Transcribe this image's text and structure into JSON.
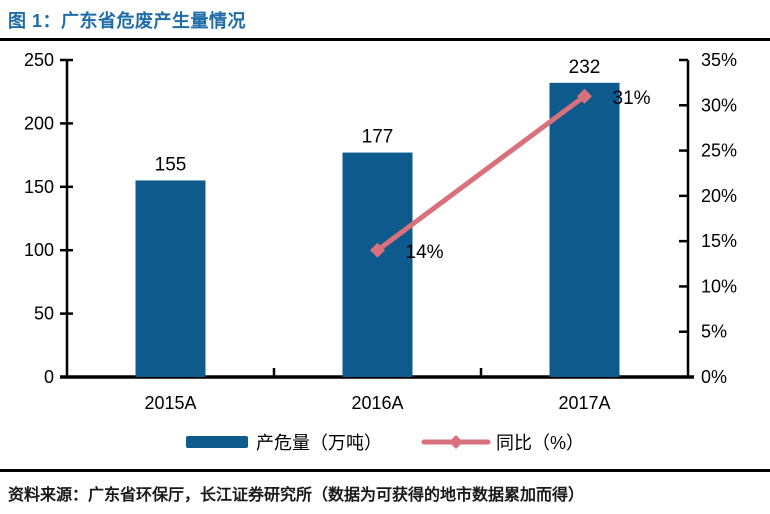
{
  "page": {
    "title": "图 1：广东省危废产生量情况",
    "source_note": "资料来源：广东省环保厅，长江证券研究所（数据为可获得的地市数据累加而得）"
  },
  "colors": {
    "title_blue": "#1E6CA8",
    "bar_blue": "#0E5A8C",
    "line_pink": "#D9717C",
    "axis_black": "#000000",
    "label_black": "#000000"
  },
  "chart_data": {
    "type": "bar",
    "title": "广东省危废产生量情况",
    "categories": [
      "2015A",
      "2016A",
      "2017A"
    ],
    "series": [
      {
        "name": "产危量（万吨）",
        "type": "bar",
        "axis": "left",
        "values": [
          155,
          177,
          232
        ],
        "data_labels": [
          "155",
          "177",
          "232"
        ]
      },
      {
        "name": "同比（%）",
        "type": "line",
        "axis": "right",
        "values": [
          null,
          14,
          31
        ],
        "data_labels": [
          null,
          "14%",
          "31%"
        ]
      }
    ],
    "left_axis": {
      "min": 0,
      "max": 250,
      "step": 50,
      "tick_labels": [
        "0",
        "50",
        "100",
        "150",
        "200",
        "250"
      ]
    },
    "right_axis": {
      "min": 0,
      "max": 35,
      "step": 5,
      "tick_labels": [
        "0%",
        "5%",
        "10%",
        "15%",
        "20%",
        "25%",
        "30%",
        "35%"
      ]
    },
    "legend": [
      {
        "label": "产危量（万吨）",
        "marker": "bar"
      },
      {
        "label": "同比（%）",
        "marker": "line-diamond"
      }
    ],
    "grid": false,
    "legend_position": "bottom"
  }
}
